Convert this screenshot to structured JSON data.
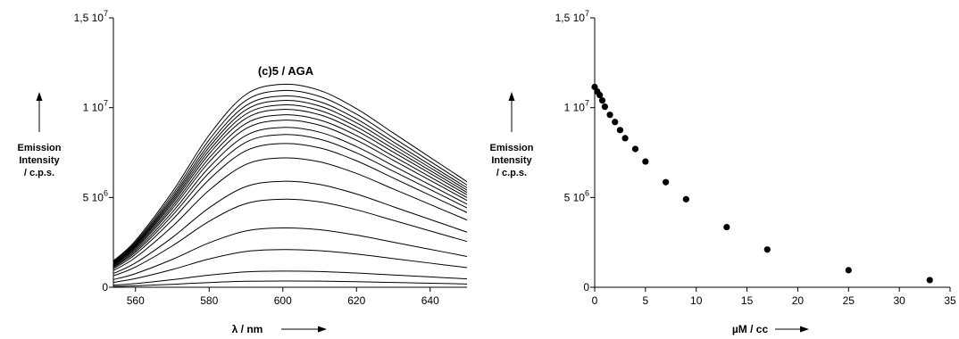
{
  "chart_data": [
    {
      "type": "line",
      "annotation": "(c)5 / AGA",
      "xlabel": "λ / nm",
      "ylabel": [
        "Emission",
        "Intensity",
        "/ c.p.s."
      ],
      "xlim": [
        554,
        650
      ],
      "ylim": [
        0,
        15000000
      ],
      "x_ticks": [
        {
          "value": 560,
          "label": "560"
        },
        {
          "value": 580,
          "label": "580"
        },
        {
          "value": 600,
          "label": "600"
        },
        {
          "value": 620,
          "label": "620"
        },
        {
          "value": 640,
          "label": "640"
        }
      ],
      "y_ticks": [
        {
          "value": 0,
          "base": "0",
          "exp": ""
        },
        {
          "value": 5000000,
          "base": "5 10",
          "exp": "6"
        },
        {
          "value": 10000000,
          "base": "1 10",
          "exp": "7"
        },
        {
          "value": 15000000,
          "base": "1,5 10",
          "exp": "7"
        }
      ],
      "grid": false,
      "x": [
        554,
        560,
        570,
        580,
        590,
        600,
        610,
        620,
        630,
        640,
        650
      ],
      "series_peaks": [
        11300000,
        10950000,
        10650000,
        10400000,
        10150000,
        9900000,
        9600000,
        9300000,
        8900000,
        8500000,
        8000000,
        7200000,
        5900000,
        4900000,
        3300000,
        2100000,
        900000,
        350000
      ],
      "curve_shape": [
        0.13,
        0.23,
        0.47,
        0.75,
        0.95,
        1.0,
        0.97,
        0.88,
        0.76,
        0.64,
        0.52
      ]
    },
    {
      "type": "scatter",
      "xlabel": "µM / cc",
      "ylabel": [
        "Emission",
        "Intensity",
        "/ c.p.s."
      ],
      "xlim": [
        0,
        35
      ],
      "ylim": [
        0,
        15000000
      ],
      "x_ticks": [
        {
          "value": 0,
          "label": "0"
        },
        {
          "value": 5,
          "label": "5"
        },
        {
          "value": 10,
          "label": "10"
        },
        {
          "value": 15,
          "label": "15"
        },
        {
          "value": 20,
          "label": "20"
        },
        {
          "value": 25,
          "label": "25"
        },
        {
          "value": 30,
          "label": "30"
        },
        {
          "value": 35,
          "label": "35"
        }
      ],
      "y_ticks": [
        {
          "value": 0,
          "base": "0",
          "exp": ""
        },
        {
          "value": 5000000,
          "base": "5 10",
          "exp": "6"
        },
        {
          "value": 10000000,
          "base": "1 10",
          "exp": "7"
        },
        {
          "value": 15000000,
          "base": "1,5 10",
          "exp": "7"
        }
      ],
      "grid": false,
      "x": [
        0,
        0.25,
        0.5,
        0.75,
        1.0,
        1.5,
        2.0,
        2.5,
        3.0,
        4.0,
        5.0,
        7.0,
        9.0,
        13.0,
        17.0,
        25.0,
        33.0
      ],
      "y": [
        11150000,
        10900000,
        10700000,
        10400000,
        10050000,
        9600000,
        9200000,
        8750000,
        8300000,
        7700000,
        7000000,
        5850000,
        4900000,
        3350000,
        2100000,
        950000,
        400000
      ]
    }
  ]
}
